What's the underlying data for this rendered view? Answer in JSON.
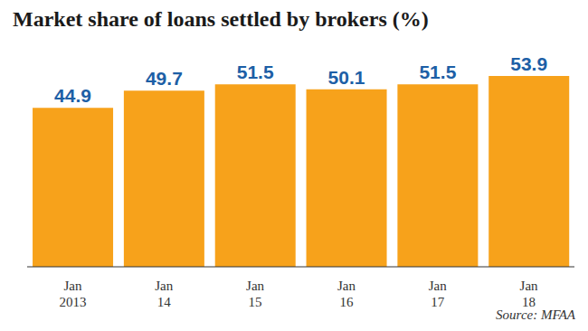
{
  "chart_data": {
    "type": "bar",
    "title": "Market share of loans settled by brokers (%)",
    "source": "Source: MFAA",
    "categories": [
      "Jan 2013",
      "Jan 14",
      "Jan 15",
      "Jan 16",
      "Jan 17",
      "Jan 18"
    ],
    "values": [
      44.9,
      49.7,
      51.5,
      50.1,
      51.5,
      53.9
    ],
    "color": "#f7a21b",
    "ylim": [
      0,
      60
    ],
    "grid": false,
    "data_labels": true,
    "tick_labels": "x"
  }
}
